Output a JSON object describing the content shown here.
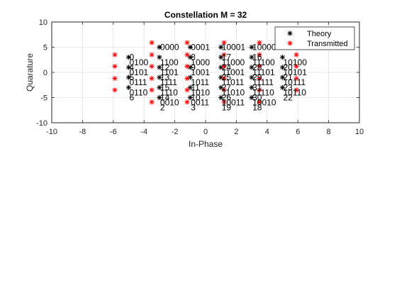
{
  "chart_data": {
    "type": "scatter",
    "title": "Constellation M = 32",
    "xlabel": "In-Phase",
    "ylabel": "Quarature",
    "xlim": [
      -10,
      10
    ],
    "ylim": [
      -10,
      10
    ],
    "xticks": [
      -10,
      -8,
      -6,
      -4,
      -2,
      0,
      2,
      4,
      6,
      8,
      10
    ],
    "yticks": [
      -10,
      -5,
      0,
      5,
      10
    ],
    "grid": true,
    "legend_location": "top-right",
    "colors": {
      "theory": "#000000",
      "transmitted": "#ff0000",
      "grid": "#e3e3e3",
      "axis": "#262626"
    },
    "series": [
      {
        "name": "Theory",
        "marker": "asterisk",
        "color": "#000000",
        "points": [
          [
            -5,
            3
          ],
          [
            -5,
            1
          ],
          [
            -5,
            -1
          ],
          [
            -5,
            -3
          ],
          [
            -3,
            5
          ],
          [
            -3,
            3
          ],
          [
            -3,
            1
          ],
          [
            -3,
            -1
          ],
          [
            -3,
            -3
          ],
          [
            -3,
            -5
          ],
          [
            -1,
            5
          ],
          [
            -1,
            3
          ],
          [
            -1,
            1
          ],
          [
            -1,
            -1
          ],
          [
            -1,
            -3
          ],
          [
            -1,
            -5
          ],
          [
            1,
            5
          ],
          [
            1,
            3
          ],
          [
            1,
            1
          ],
          [
            1,
            -1
          ],
          [
            1,
            -3
          ],
          [
            1,
            -5
          ],
          [
            3,
            5
          ],
          [
            3,
            3
          ],
          [
            3,
            1
          ],
          [
            3,
            -1
          ],
          [
            3,
            -3
          ],
          [
            3,
            -5
          ],
          [
            5,
            3
          ],
          [
            5,
            1
          ],
          [
            5,
            -1
          ],
          [
            5,
            -3
          ]
        ]
      },
      {
        "name": "Transmitted",
        "marker": "asterisk",
        "color": "#ff0000",
        "points": [
          [
            -5.9,
            3.5
          ],
          [
            -5.9,
            1.2
          ],
          [
            -5.9,
            -1.2
          ],
          [
            -5.9,
            -3.5
          ],
          [
            -3.5,
            5.9
          ],
          [
            -3.5,
            3.5
          ],
          [
            -3.5,
            1.2
          ],
          [
            -3.5,
            -1.2
          ],
          [
            -3.5,
            -3.5
          ],
          [
            -3.5,
            -5.9
          ],
          [
            -1.2,
            5.9
          ],
          [
            -1.2,
            3.5
          ],
          [
            -1.2,
            1.2
          ],
          [
            -1.2,
            -1.2
          ],
          [
            -1.2,
            -3.5
          ],
          [
            -1.2,
            -5.9
          ],
          [
            1.2,
            5.9
          ],
          [
            1.2,
            3.5
          ],
          [
            1.2,
            1.2
          ],
          [
            1.2,
            -1.2
          ],
          [
            1.2,
            -3.5
          ],
          [
            1.2,
            -5.9
          ],
          [
            3.5,
            5.9
          ],
          [
            3.5,
            3.5
          ],
          [
            3.5,
            1.2
          ],
          [
            3.5,
            -1.2
          ],
          [
            3.5,
            -3.5
          ],
          [
            3.5,
            -5.9
          ],
          [
            5.9,
            3.5
          ],
          [
            5.9,
            1.2
          ],
          [
            5.9,
            -1.2
          ],
          [
            5.9,
            -3.5
          ]
        ]
      }
    ],
    "annotations": [
      {
        "text": "0000",
        "x": -3,
        "y": 5
      },
      {
        "text": "0001",
        "x": -1,
        "y": 5
      },
      {
        "text": "10001",
        "x": 1,
        "y": 5
      },
      {
        "text": "10000",
        "x": 3,
        "y": 5
      },
      {
        "text": "0100",
        "x": -5,
        "y": 2
      },
      {
        "text": "1100",
        "x": -3,
        "y": 2
      },
      {
        "text": "1000",
        "x": -1,
        "y": 2
      },
      {
        "text": "11000",
        "x": 1,
        "y": 2
      },
      {
        "text": "11100",
        "x": 3,
        "y": 2
      },
      {
        "text": "10100",
        "x": 5,
        "y": 2
      },
      {
        "text": "0101",
        "x": -5,
        "y": 0
      },
      {
        "text": "1101",
        "x": -3,
        "y": 0
      },
      {
        "text": "1001",
        "x": -1,
        "y": 0
      },
      {
        "text": "11001",
        "x": 1,
        "y": 0
      },
      {
        "text": "11101",
        "x": 3,
        "y": 0
      },
      {
        "text": "10101",
        "x": 5,
        "y": 0
      },
      {
        "text": "0111",
        "x": -5,
        "y": -2
      },
      {
        "text": "1111",
        "x": -3,
        "y": -2
      },
      {
        "text": "1011",
        "x": -1,
        "y": -2
      },
      {
        "text": "11011",
        "x": 1,
        "y": -2
      },
      {
        "text": "11111",
        "x": 3,
        "y": -2
      },
      {
        "text": "10111",
        "x": 5,
        "y": -2
      },
      {
        "text": "0110",
        "x": -5,
        "y": -4
      },
      {
        "text": "1110",
        "x": -3,
        "y": -4
      },
      {
        "text": "1010",
        "x": -1,
        "y": -4
      },
      {
        "text": "11010",
        "x": 1,
        "y": -4
      },
      {
        "text": "11110",
        "x": 3,
        "y": -4
      },
      {
        "text": "10110",
        "x": 5,
        "y": -4
      },
      {
        "text": "0010",
        "x": -3,
        "y": -6
      },
      {
        "text": "0011",
        "x": -1,
        "y": -6
      },
      {
        "text": "10011",
        "x": 1,
        "y": -6
      },
      {
        "text": "10010",
        "x": 3,
        "y": -6
      },
      {
        "text": "0",
        "x": -5,
        "y": 3
      },
      {
        "text": "4",
        "x": -5,
        "y": 1
      },
      {
        "text": "5",
        "x": -5,
        "y": -1
      },
      {
        "text": "6",
        "x": -5,
        "y": -5
      },
      {
        "text": "12",
        "x": -3,
        "y": 1
      },
      {
        "text": "13",
        "x": -3,
        "y": -1
      },
      {
        "text": "15",
        "x": -3,
        "y": -3
      },
      {
        "text": "14",
        "x": -3,
        "y": -5
      },
      {
        "text": "2",
        "x": -3,
        "y": -7
      },
      {
        "text": "8",
        "x": -1,
        "y": 3
      },
      {
        "text": "9",
        "x": -1,
        "y": 1
      },
      {
        "text": "11",
        "x": -1,
        "y": -3
      },
      {
        "text": "10",
        "x": -1,
        "y": -5
      },
      {
        "text": "3",
        "x": -1,
        "y": -7
      },
      {
        "text": "17",
        "x": 1,
        "y": 3
      },
      {
        "text": "24",
        "x": 1,
        "y": 1
      },
      {
        "text": "25",
        "x": 1,
        "y": -1
      },
      {
        "text": "27",
        "x": 1,
        "y": -3
      },
      {
        "text": "26",
        "x": 1,
        "y": -5
      },
      {
        "text": "19",
        "x": 1,
        "y": -7
      },
      {
        "text": "16",
        "x": 3,
        "y": 3
      },
      {
        "text": "28",
        "x": 3,
        "y": 1
      },
      {
        "text": "29",
        "x": 3,
        "y": -1
      },
      {
        "text": "31",
        "x": 3,
        "y": -3
      },
      {
        "text": "30",
        "x": 3,
        "y": -5
      },
      {
        "text": "18",
        "x": 3,
        "y": -7
      },
      {
        "text": "20",
        "x": 5,
        "y": 1
      },
      {
        "text": "21",
        "x": 5,
        "y": -1
      },
      {
        "text": "23",
        "x": 5,
        "y": -3
      },
      {
        "text": "22",
        "x": 5,
        "y": -5
      }
    ]
  }
}
